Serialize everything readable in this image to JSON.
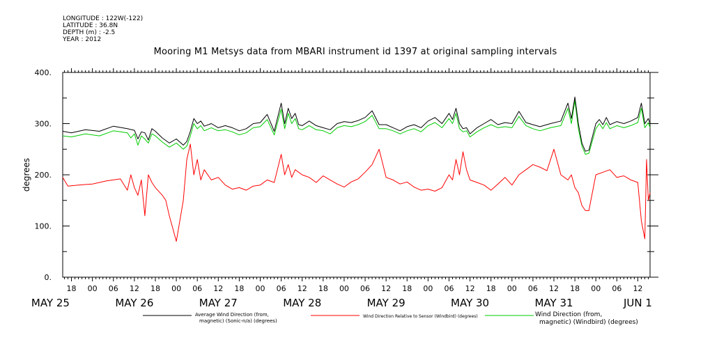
{
  "header": {
    "longitude": "LONGITUDE : 122W(-122)",
    "latitude": "LATITUDE : 36.8N",
    "depth": "DEPTH (m) : -2.5",
    "year": "YEAR : 2012"
  },
  "chart_data": {
    "type": "line",
    "title": "Mooring M1 Metsys data from MBARI instrument id 1397 at original sampling intervals",
    "ylabel": "degrees",
    "ylim": [
      0,
      400
    ],
    "y_ticks": [
      0,
      100,
      200,
      300,
      400
    ],
    "y_tick_labels": [
      "0.",
      "100.",
      "200.",
      "300.",
      "400."
    ],
    "x_units": "hours since 2012-05-25 00:00",
    "xlim": [
      15.5,
      183.5
    ],
    "x_hour_ticks": [
      {
        "h": 18,
        "label": "18"
      },
      {
        "h": 24,
        "label": "00"
      },
      {
        "h": 30,
        "label": "06"
      },
      {
        "h": 36,
        "label": "12"
      },
      {
        "h": 42,
        "label": "18"
      },
      {
        "h": 48,
        "label": "00"
      },
      {
        "h": 54,
        "label": "06"
      },
      {
        "h": 60,
        "label": "12"
      },
      {
        "h": 66,
        "label": "18"
      },
      {
        "h": 72,
        "label": "00"
      },
      {
        "h": 78,
        "label": "06"
      },
      {
        "h": 84,
        "label": "12"
      },
      {
        "h": 90,
        "label": "18"
      },
      {
        "h": 96,
        "label": "00"
      },
      {
        "h": 102,
        "label": "06"
      },
      {
        "h": 108,
        "label": "12"
      },
      {
        "h": 114,
        "label": "18"
      },
      {
        "h": 120,
        "label": "00"
      },
      {
        "h": 126,
        "label": "06"
      },
      {
        "h": 132,
        "label": "12"
      },
      {
        "h": 138,
        "label": "18"
      },
      {
        "h": 144,
        "label": "00"
      },
      {
        "h": 150,
        "label": "06"
      },
      {
        "h": 156,
        "label": "12"
      },
      {
        "h": 162,
        "label": "18"
      },
      {
        "h": 168,
        "label": "00"
      },
      {
        "h": 174,
        "label": "06"
      },
      {
        "h": 180,
        "label": "12"
      }
    ],
    "x_day_labels": [
      {
        "h": 12,
        "label": "MAY 25"
      },
      {
        "h": 36,
        "label": "MAY 26"
      },
      {
        "h": 60,
        "label": "MAY 27"
      },
      {
        "h": 84,
        "label": "MAY 28"
      },
      {
        "h": 108,
        "label": "MAY 29"
      },
      {
        "h": 132,
        "label": "MAY 30"
      },
      {
        "h": 156,
        "label": "MAY 31"
      },
      {
        "h": 180,
        "label": "JUN  1"
      }
    ],
    "legend_position": "bottom",
    "series": [
      {
        "name": "Average Wind Direction (from, magnetic) (Sonic-n/a) (degrees)",
        "color": "#000000",
        "x": [
          15.5,
          18,
          22,
          26,
          30,
          34,
          36,
          37,
          38,
          39,
          40,
          41,
          42,
          44,
          46,
          48,
          50,
          51,
          52,
          53,
          54,
          55,
          56,
          58,
          60,
          62,
          64,
          66,
          68,
          70,
          72,
          74,
          76,
          78,
          79,
          80,
          81,
          82,
          83,
          84,
          86,
          88,
          90,
          92,
          94,
          96,
          98,
          100,
          102,
          104,
          106,
          108,
          110,
          112,
          114,
          116,
          118,
          120,
          122,
          124,
          126,
          127,
          128,
          129,
          130,
          131,
          132,
          134,
          136,
          138,
          140,
          142,
          144,
          146,
          148,
          150,
          152,
          155,
          158,
          160,
          161,
          162,
          163,
          164,
          165,
          166,
          168,
          169,
          170,
          171,
          172,
          174,
          176,
          178,
          180,
          181,
          182,
          183,
          183.5
        ],
        "y": [
          285,
          282,
          288,
          285,
          295,
          290,
          287,
          270,
          284,
          282,
          268,
          290,
          285,
          272,
          262,
          270,
          258,
          265,
          285,
          310,
          300,
          305,
          295,
          300,
          292,
          296,
          292,
          286,
          290,
          300,
          302,
          318,
          285,
          340,
          300,
          330,
          310,
          320,
          298,
          296,
          305,
          296,
          292,
          288,
          300,
          304,
          302,
          306,
          312,
          325,
          298,
          298,
          292,
          286,
          294,
          298,
          292,
          305,
          312,
          300,
          320,
          308,
          330,
          300,
          290,
          292,
          280,
          292,
          300,
          308,
          298,
          302,
          300,
          324,
          302,
          298,
          294,
          300,
          305,
          340,
          310,
          352,
          300,
          262,
          246,
          248,
          300,
          308,
          298,
          312,
          298,
          304,
          300,
          305,
          312,
          340,
          300,
          310,
          300
        ]
      },
      {
        "name": "Wind Direction Relative to Sensor (Windbird) (degrees)",
        "color": "#ff0000",
        "x": [
          15.5,
          17,
          20,
          24,
          28,
          32,
          34,
          35,
          36,
          37,
          38,
          39,
          40,
          41,
          42,
          44,
          45,
          46,
          47,
          48,
          49,
          50,
          51,
          52,
          53,
          54,
          55,
          56,
          58,
          60,
          62,
          64,
          66,
          68,
          70,
          72,
          74,
          76,
          78,
          79,
          80,
          81,
          82,
          84,
          86,
          88,
          90,
          92,
          94,
          96,
          98,
          100,
          102,
          104,
          106,
          108,
          110,
          112,
          114,
          116,
          118,
          120,
          122,
          124,
          126,
          127,
          128,
          129,
          130,
          131,
          132,
          134,
          136,
          138,
          140,
          142,
          144,
          146,
          148,
          150,
          152,
          154,
          156,
          158,
          160,
          161,
          162,
          163,
          164,
          165,
          166,
          168,
          170,
          172,
          174,
          176,
          178,
          180,
          181,
          182,
          182.5,
          183,
          183.5
        ],
        "y": [
          195,
          178,
          180,
          182,
          188,
          192,
          170,
          200,
          175,
          160,
          190,
          120,
          200,
          185,
          175,
          160,
          150,
          120,
          95,
          70,
          110,
          150,
          230,
          260,
          200,
          230,
          190,
          210,
          190,
          195,
          180,
          172,
          175,
          170,
          178,
          180,
          190,
          185,
          240,
          200,
          220,
          195,
          210,
          200,
          195,
          185,
          198,
          190,
          182,
          176,
          186,
          192,
          205,
          220,
          250,
          195,
          190,
          182,
          186,
          176,
          170,
          172,
          168,
          175,
          200,
          190,
          230,
          200,
          245,
          210,
          190,
          185,
          180,
          170,
          182,
          195,
          180,
          200,
          210,
          220,
          215,
          208,
          250,
          200,
          190,
          200,
          175,
          165,
          140,
          130,
          130,
          200,
          205,
          210,
          195,
          198,
          190,
          185,
          110,
          75,
          230,
          150,
          165
        ]
      },
      {
        "name": "Wind Direction (from, magnetic) (Windbird) (degrees)",
        "color": "#00cc00",
        "x": [
          15.5,
          18,
          22,
          26,
          30,
          34,
          35,
          36,
          37,
          38,
          39,
          40,
          41,
          42,
          44,
          46,
          48,
          50,
          51,
          52,
          53,
          54,
          55,
          56,
          58,
          60,
          62,
          64,
          66,
          68,
          70,
          72,
          74,
          76,
          78,
          79,
          80,
          81,
          82,
          83,
          84,
          86,
          88,
          90,
          92,
          94,
          96,
          98,
          100,
          102,
          104,
          106,
          108,
          110,
          112,
          114,
          116,
          118,
          120,
          122,
          124,
          126,
          127,
          128,
          129,
          130,
          131,
          132,
          134,
          136,
          138,
          140,
          142,
          144,
          146,
          148,
          150,
          152,
          155,
          158,
          160,
          161,
          162,
          163,
          164,
          165,
          166,
          168,
          169,
          170,
          171,
          172,
          174,
          176,
          178,
          180,
          181,
          182,
          183,
          183.5
        ],
        "y": [
          276,
          274,
          280,
          276,
          286,
          282,
          272,
          280,
          258,
          276,
          270,
          262,
          280,
          276,
          264,
          254,
          262,
          250,
          256,
          276,
          300,
          290,
          296,
          286,
          292,
          286,
          288,
          284,
          278,
          282,
          292,
          294,
          308,
          278,
          328,
          290,
          320,
          300,
          310,
          290,
          288,
          296,
          288,
          286,
          280,
          292,
          296,
          294,
          298,
          304,
          316,
          290,
          290,
          286,
          280,
          286,
          290,
          284,
          296,
          302,
          292,
          310,
          300,
          320,
          290,
          284,
          286,
          274,
          284,
          292,
          298,
          292,
          294,
          292,
          314,
          296,
          290,
          286,
          292,
          296,
          330,
          300,
          345,
          290,
          256,
          240,
          242,
          290,
          300,
          290,
          302,
          290,
          296,
          292,
          296,
          302,
          330,
          292,
          302,
          292
        ]
      }
    ]
  }
}
